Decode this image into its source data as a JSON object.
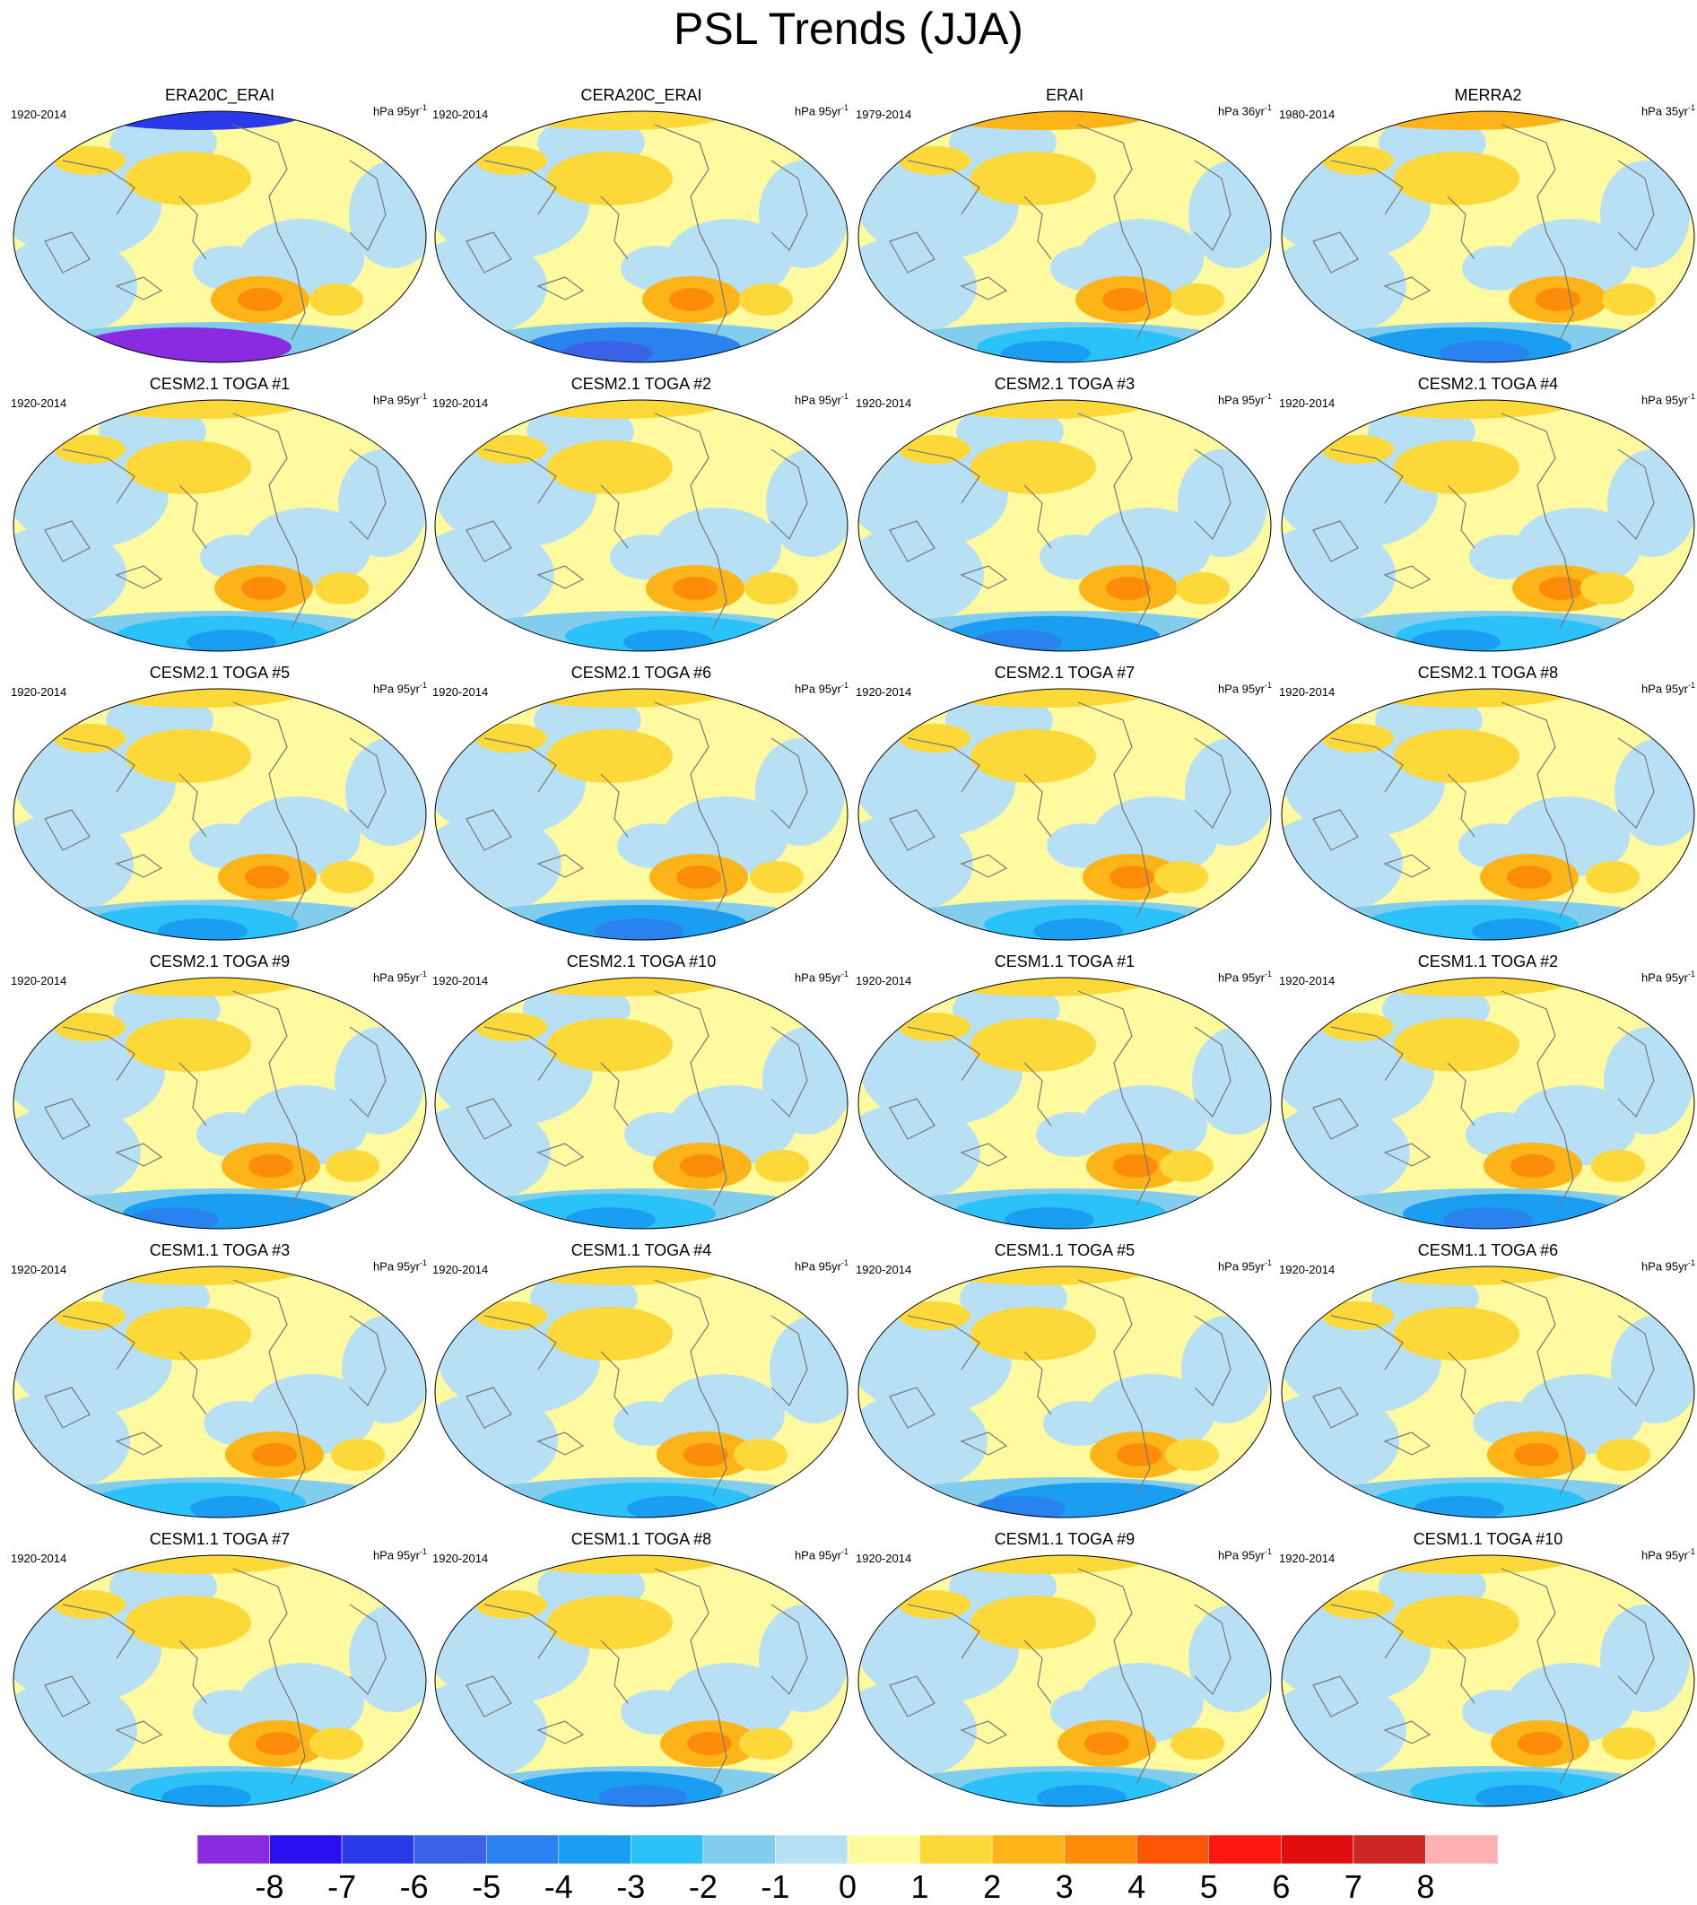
{
  "title": "PSL Trends (JJA)",
  "panels": [
    {
      "title": "ERA20C_ERAI",
      "period": "1920-2014",
      "units": "hPa 95yr",
      "exp": "-1"
    },
    {
      "title": "CERA20C_ERAI",
      "period": "1920-2014",
      "units": "hPa 95yr",
      "exp": "-1"
    },
    {
      "title": "ERAI",
      "period": "1979-2014",
      "units": "hPa 36yr",
      "exp": "-1"
    },
    {
      "title": "MERRA2",
      "period": "1980-2014",
      "units": "hPa 35yr",
      "exp": "-1"
    },
    {
      "title": "CESM2.1 TOGA #1",
      "period": "1920-2014",
      "units": "hPa 95yr",
      "exp": "-1"
    },
    {
      "title": "CESM2.1 TOGA #2",
      "period": "1920-2014",
      "units": "hPa 95yr",
      "exp": "-1"
    },
    {
      "title": "CESM2.1 TOGA #3",
      "period": "1920-2014",
      "units": "hPa 95yr",
      "exp": "-1"
    },
    {
      "title": "CESM2.1 TOGA #4",
      "period": "1920-2014",
      "units": "hPa 95yr",
      "exp": "-1"
    },
    {
      "title": "CESM2.1 TOGA #5",
      "period": "1920-2014",
      "units": "hPa 95yr",
      "exp": "-1"
    },
    {
      "title": "CESM2.1 TOGA #6",
      "period": "1920-2014",
      "units": "hPa 95yr",
      "exp": "-1"
    },
    {
      "title": "CESM2.1 TOGA #7",
      "period": "1920-2014",
      "units": "hPa 95yr",
      "exp": "-1"
    },
    {
      "title": "CESM2.1 TOGA #8",
      "period": "1920-2014",
      "units": "hPa 95yr",
      "exp": "-1"
    },
    {
      "title": "CESM2.1 TOGA #9",
      "period": "1920-2014",
      "units": "hPa 95yr",
      "exp": "-1"
    },
    {
      "title": "CESM2.1 TOGA #10",
      "period": "1920-2014",
      "units": "hPa 95yr",
      "exp": "-1"
    },
    {
      "title": "CESM1.1 TOGA #1",
      "period": "1920-2014",
      "units": "hPa 95yr",
      "exp": "-1"
    },
    {
      "title": "CESM1.1 TOGA #2",
      "period": "1920-2014",
      "units": "hPa 95yr",
      "exp": "-1"
    },
    {
      "title": "CESM1.1 TOGA #3",
      "period": "1920-2014",
      "units": "hPa 95yr",
      "exp": "-1"
    },
    {
      "title": "CESM1.1 TOGA #4",
      "period": "1920-2014",
      "units": "hPa 95yr",
      "exp": "-1"
    },
    {
      "title": "CESM1.1 TOGA #5",
      "period": "1920-2014",
      "units": "hPa 95yr",
      "exp": "-1"
    },
    {
      "title": "CESM1.1 TOGA #6",
      "period": "1920-2014",
      "units": "hPa 95yr",
      "exp": "-1"
    },
    {
      "title": "CESM1.1 TOGA #7",
      "period": "1920-2014",
      "units": "hPa 95yr",
      "exp": "-1"
    },
    {
      "title": "CESM1.1 TOGA #8",
      "period": "1920-2014",
      "units": "hPa 95yr",
      "exp": "-1"
    },
    {
      "title": "CESM1.1 TOGA #9",
      "period": "1920-2014",
      "units": "hPa 95yr",
      "exp": "-1"
    },
    {
      "title": "CESM1.1 TOGA #10",
      "period": "1920-2014",
      "units": "hPa 95yr",
      "exp": "-1"
    }
  ],
  "colorbar": {
    "labels": [
      "-8",
      "-7",
      "-6",
      "-5",
      "-4",
      "-3",
      "-2",
      "-1",
      "0",
      "1",
      "2",
      "3",
      "4",
      "5",
      "6",
      "7",
      "8"
    ],
    "colors": [
      "#8a2be2",
      "#2a10f0",
      "#2a3ae8",
      "#3a62e6",
      "#2a82ee",
      "#1a9ef2",
      "#2ac2f8",
      "#82cdee",
      "#b8e0f4",
      "#fffaa0",
      "#fcd838",
      "#fcb418",
      "#fc8c0a",
      "#fc5606",
      "#fc1810",
      "#e00e0e",
      "#cc2626",
      "#ffb0b0"
    ]
  }
}
